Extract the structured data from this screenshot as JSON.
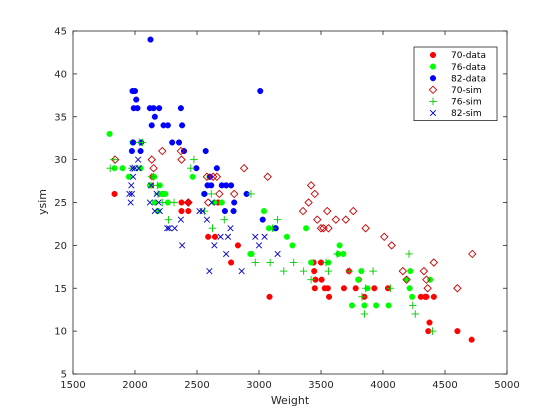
{
  "chart_data": {
    "type": "scatter",
    "title": "",
    "xlabel": "Weight",
    "ylabel": "ysim",
    "xlim": [
      1500,
      5000
    ],
    "ylim": [
      5,
      45
    ],
    "xticks": [
      1500,
      2000,
      2500,
      3000,
      3500,
      4000,
      4500,
      5000
    ],
    "yticks": [
      5,
      10,
      15,
      20,
      25,
      30,
      35,
      40,
      45
    ],
    "grid": false,
    "legend_position": "top-right",
    "series": [
      {
        "name": "70-data",
        "marker": "filled-circle",
        "color": "#ff0000",
        "points": [
          [
            1835,
            26
          ],
          [
            2130,
            27
          ],
          [
            2140,
            28
          ],
          [
            2225,
            26
          ],
          [
            2375,
            25
          ],
          [
            2375,
            24
          ],
          [
            2430,
            25
          ],
          [
            2430,
            24
          ],
          [
            2590,
            21
          ],
          [
            2645,
            21
          ],
          [
            2670,
            25
          ],
          [
            2775,
            18
          ],
          [
            2830,
            20
          ],
          [
            3085,
            14
          ],
          [
            3440,
            18
          ],
          [
            3445,
            17
          ],
          [
            3450,
            15
          ],
          [
            3455,
            16
          ],
          [
            3500,
            18
          ],
          [
            3505,
            16
          ],
          [
            3530,
            15
          ],
          [
            3555,
            15
          ],
          [
            3565,
            14
          ],
          [
            3685,
            15
          ],
          [
            3725,
            17
          ],
          [
            3780,
            15
          ],
          [
            3805,
            16
          ],
          [
            3850,
            14
          ],
          [
            3930,
            15
          ],
          [
            4040,
            15
          ],
          [
            4305,
            14
          ],
          [
            4340,
            14
          ],
          [
            4350,
            14
          ],
          [
            4365,
            10
          ],
          [
            4375,
            11
          ],
          [
            4410,
            14
          ],
          [
            4600,
            10
          ],
          [
            4715,
            9
          ]
        ]
      },
      {
        "name": "76-data",
        "marker": "filled-circle",
        "color": "#00ff00",
        "points": [
          [
            1795,
            33
          ],
          [
            1835,
            29
          ],
          [
            1900,
            29
          ],
          [
            1950,
            28
          ],
          [
            1980,
            32
          ],
          [
            2045,
            29
          ],
          [
            2120,
            27
          ],
          [
            2155,
            28
          ],
          [
            2160,
            25
          ],
          [
            2185,
            24
          ],
          [
            2200,
            27
          ],
          [
            2215,
            26
          ],
          [
            2245,
            26
          ],
          [
            2265,
            25
          ],
          [
            2465,
            28
          ],
          [
            2555,
            26
          ],
          [
            2560,
            26
          ],
          [
            2600,
            28
          ],
          [
            2640,
            25
          ],
          [
            2700,
            25
          ],
          [
            2930,
            19
          ],
          [
            2940,
            19
          ],
          [
            3040,
            24
          ],
          [
            3080,
            22
          ],
          [
            3125,
            22
          ],
          [
            3225,
            21
          ],
          [
            3270,
            20
          ],
          [
            3380,
            22
          ],
          [
            3420,
            18
          ],
          [
            3560,
            18
          ],
          [
            3640,
            19
          ],
          [
            3650,
            20
          ],
          [
            3680,
            19
          ],
          [
            3750,
            13
          ],
          [
            3800,
            16
          ],
          [
            3825,
            17
          ],
          [
            3850,
            13
          ],
          [
            3875,
            15
          ],
          [
            3945,
            13
          ],
          [
            4045,
            13
          ],
          [
            4190,
            16
          ],
          [
            4215,
            15
          ],
          [
            4220,
            17
          ],
          [
            4235,
            14
          ],
          [
            4380,
            16
          ]
        ]
      },
      {
        "name": "82-data",
        "marker": "filled-circle",
        "color": "#0000ff",
        "points": [
          [
            1975,
            31
          ],
          [
            1980,
            38
          ],
          [
            1985,
            32
          ],
          [
            1990,
            36
          ],
          [
            2000,
            38
          ],
          [
            2010,
            37
          ],
          [
            2020,
            36
          ],
          [
            2045,
            31
          ],
          [
            2050,
            32
          ],
          [
            2120,
            36
          ],
          [
            2125,
            44
          ],
          [
            2135,
            34
          ],
          [
            2150,
            36
          ],
          [
            2160,
            35
          ],
          [
            2195,
            36
          ],
          [
            2230,
            34
          ],
          [
            2265,
            34
          ],
          [
            2300,
            32
          ],
          [
            2355,
            32
          ],
          [
            2370,
            36
          ],
          [
            2380,
            34
          ],
          [
            2395,
            31
          ],
          [
            2495,
            29
          ],
          [
            2560,
            26
          ],
          [
            2570,
            31
          ],
          [
            2585,
            27
          ],
          [
            2605,
            28
          ],
          [
            2615,
            27
          ],
          [
            2660,
            29
          ],
          [
            2700,
            27
          ],
          [
            2725,
            24
          ],
          [
            2735,
            27
          ],
          [
            2775,
            27
          ],
          [
            2795,
            24
          ],
          [
            2800,
            25
          ],
          [
            2900,
            26
          ],
          [
            3010,
            38
          ],
          [
            3030,
            23
          ],
          [
            3135,
            22
          ]
        ]
      },
      {
        "name": "70-sim",
        "marker": "open-diamond",
        "color": "#cc0000",
        "points": [
          [
            1840,
            30
          ],
          [
            2135,
            30
          ],
          [
            2150,
            29
          ],
          [
            2220,
            31
          ],
          [
            2370,
            31
          ],
          [
            2375,
            30
          ],
          [
            2430,
            25
          ],
          [
            2430,
            25
          ],
          [
            2580,
            28
          ],
          [
            2590,
            25
          ],
          [
            2630,
            28
          ],
          [
            2660,
            28
          ],
          [
            2680,
            26
          ],
          [
            2800,
            26
          ],
          [
            2880,
            29
          ],
          [
            3070,
            28
          ],
          [
            3355,
            24
          ],
          [
            3400,
            25
          ],
          [
            3420,
            27
          ],
          [
            3450,
            26
          ],
          [
            3470,
            23
          ],
          [
            3500,
            22
          ],
          [
            3520,
            22
          ],
          [
            3550,
            24
          ],
          [
            3560,
            22
          ],
          [
            3620,
            23
          ],
          [
            3700,
            23
          ],
          [
            3760,
            24
          ],
          [
            3860,
            22
          ],
          [
            4010,
            21
          ],
          [
            4070,
            20
          ],
          [
            4160,
            17
          ],
          [
            4190,
            16
          ],
          [
            4330,
            17
          ],
          [
            4350,
            16
          ],
          [
            4360,
            15
          ],
          [
            4410,
            18
          ],
          [
            4600,
            15
          ],
          [
            4720,
            19
          ]
        ]
      },
      {
        "name": "76-sim",
        "marker": "plus",
        "color": "#00cc00",
        "points": [
          [
            1800,
            29
          ],
          [
            1830,
            30
          ],
          [
            1975,
            29
          ],
          [
            2035,
            32
          ],
          [
            2060,
            32
          ],
          [
            2135,
            28
          ],
          [
            2150,
            28
          ],
          [
            2180,
            27
          ],
          [
            2185,
            26
          ],
          [
            2220,
            25
          ],
          [
            2270,
            23
          ],
          [
            2315,
            25
          ],
          [
            2450,
            29
          ],
          [
            2475,
            30
          ],
          [
            2560,
            24
          ],
          [
            2615,
            26
          ],
          [
            2625,
            22
          ],
          [
            2720,
            23
          ],
          [
            2935,
            26
          ],
          [
            2970,
            18
          ],
          [
            3090,
            18
          ],
          [
            3110,
            22
          ],
          [
            3150,
            23
          ],
          [
            3200,
            17
          ],
          [
            3280,
            18
          ],
          [
            3360,
            17
          ],
          [
            3420,
            16
          ],
          [
            3540,
            18
          ],
          [
            3560,
            17
          ],
          [
            3630,
            19
          ],
          [
            3730,
            17
          ],
          [
            3830,
            14
          ],
          [
            3850,
            12
          ],
          [
            3860,
            15
          ],
          [
            3920,
            17
          ],
          [
            4060,
            15
          ],
          [
            4210,
            19
          ],
          [
            4240,
            13
          ],
          [
            4260,
            12
          ],
          [
            4400,
            10
          ]
        ]
      },
      {
        "name": "82-sim",
        "marker": "x",
        "color": "#0000cc",
        "points": [
          [
            1955,
            26
          ],
          [
            1965,
            25
          ],
          [
            1970,
            27
          ],
          [
            1975,
            26
          ],
          [
            1980,
            29
          ],
          [
            1985,
            28
          ],
          [
            2000,
            29
          ],
          [
            2025,
            30
          ],
          [
            2030,
            29
          ],
          [
            2120,
            25
          ],
          [
            2130,
            27
          ],
          [
            2160,
            24
          ],
          [
            2175,
            26
          ],
          [
            2190,
            25
          ],
          [
            2200,
            24
          ],
          [
            2260,
            22
          ],
          [
            2275,
            22
          ],
          [
            2320,
            22
          ],
          [
            2370,
            23
          ],
          [
            2380,
            20
          ],
          [
            2520,
            24
          ],
          [
            2545,
            24
          ],
          [
            2580,
            23
          ],
          [
            2600,
            17
          ],
          [
            2620,
            25
          ],
          [
            2640,
            20
          ],
          [
            2690,
            21
          ],
          [
            2735,
            19
          ],
          [
            2750,
            21
          ],
          [
            2770,
            22
          ],
          [
            2860,
            17
          ],
          [
            2970,
            21
          ],
          [
            3000,
            20
          ],
          [
            3045,
            21
          ],
          [
            3150,
            19
          ]
        ]
      }
    ]
  }
}
